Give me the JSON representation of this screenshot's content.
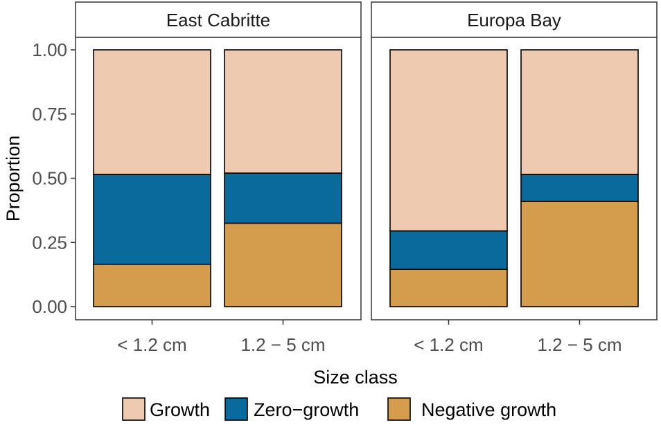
{
  "chart_data": {
    "type": "bar",
    "stacked": true,
    "xlabel": "Size class",
    "ylabel": "Proportion",
    "ylim": [
      0,
      1
    ],
    "yticks": [
      "0.00",
      "0.25",
      "0.50",
      "0.75",
      "1.00"
    ],
    "ytick_values": [
      0,
      0.25,
      0.5,
      0.75,
      1
    ],
    "categories": [
      "< 1.2 cm",
      "1.2 − 5 cm"
    ],
    "legend": {
      "position": "bottom",
      "items": [
        {
          "label": "Growth",
          "color": "#eecbb0"
        },
        {
          "label": "Zero−growth",
          "color": "#0a6a9b"
        },
        {
          "label": "Negative growth",
          "color": "#d49d4e"
        }
      ]
    },
    "facets": [
      {
        "title": "East Cabritte",
        "series": [
          {
            "name": "Negative growth",
            "values": [
              0.165,
              0.325
            ]
          },
          {
            "name": "Zero−growth",
            "values": [
              0.35,
              0.195
            ]
          },
          {
            "name": "Growth",
            "values": [
              0.485,
              0.48
            ]
          }
        ]
      },
      {
        "title": "Europa Bay",
        "series": [
          {
            "name": "Negative growth",
            "values": [
              0.145,
              0.41
            ]
          },
          {
            "name": "Zero−growth",
            "values": [
              0.15,
              0.105
            ]
          },
          {
            "name": "Growth",
            "values": [
              0.705,
              0.485
            ]
          }
        ]
      }
    ]
  }
}
